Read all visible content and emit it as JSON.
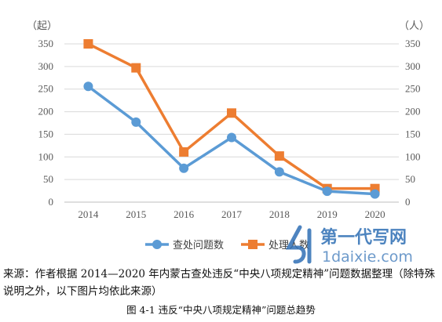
{
  "chart_data": {
    "type": "line",
    "categories": [
      "2014",
      "2015",
      "2016",
      "2017",
      "2018",
      "2019",
      "2020"
    ],
    "series": [
      {
        "name": "查处问题数",
        "axis": "left",
        "color": "#5B9BD5",
        "marker": "circle",
        "values": [
          256,
          177,
          75,
          143,
          67,
          24,
          18
        ]
      },
      {
        "name": "处理人数",
        "axis": "right",
        "color": "#ED7D31",
        "marker": "square",
        "values": [
          350,
          297,
          111,
          197,
          102,
          30,
          30
        ]
      }
    ],
    "left_axis": {
      "unit": "（起）",
      "min": 0,
      "max": 350,
      "step": 50,
      "ticks": [
        "0",
        "50",
        "100",
        "150",
        "200",
        "250",
        "300",
        "350"
      ]
    },
    "right_axis": {
      "unit": "（人）",
      "min": 0,
      "max": 350,
      "step": 50,
      "ticks": [
        "0",
        "50",
        "100",
        "150",
        "200",
        "250",
        "300",
        "350"
      ]
    },
    "grid": true,
    "legend_position": "bottom",
    "legend_labels": [
      "查处问题数",
      "处理人数"
    ]
  },
  "source_note": "来源：作者根据 2014—2020 年内蒙古查处违反“中央八项规定精神”问题数据整理（除特殊说明之外，以下图片均依此来源）",
  "figure_caption": "图 4-1    违反“中央八项规定精神”问题总趋势",
  "watermark": {
    "text": "第一代写网",
    "url": "1daixie.com",
    "color": "#2f6fb5"
  }
}
